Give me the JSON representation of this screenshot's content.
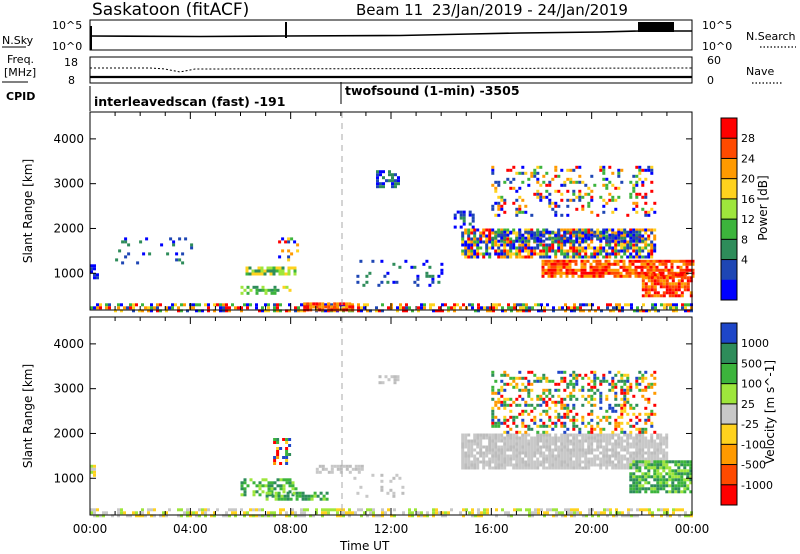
{
  "header": {
    "title": "Saskatoon (fitACF)",
    "beam": "Beam 11",
    "date_range": "23/Jan/2019 - 24/Jan/2019"
  },
  "ancillary": {
    "nsky_label": "N.Sky",
    "nsky_ticks": [
      "10^5",
      "10^0"
    ],
    "nsearch_label": "N.Search",
    "nsearch_ticks": [
      "10^5",
      "10^0"
    ],
    "freq_label_1": "Freq.",
    "freq_label_2": "[MHz]",
    "freq_ticks": [
      "18",
      "8"
    ],
    "nave_label": "Nave",
    "nave_ticks": [
      "60",
      "0"
    ],
    "cpid_label": "CPID",
    "cpid_segments": [
      {
        "name": "interleavedscan (fast) -191",
        "start_hour": 0
      },
      {
        "name": "twofsound (1-min) -3505",
        "start_hour": 10
      }
    ]
  },
  "chart_data": [
    {
      "type": "heatmap",
      "title": "Power [dB]",
      "ylabel": "Slant Range [km]",
      "xlabel": "Time UT",
      "ylim": [
        180,
        4600
      ],
      "yticks": [
        1000,
        2000,
        3000,
        4000
      ],
      "xlim": [
        0,
        24
      ],
      "xticks": [
        "00:00",
        "04:00",
        "08:00",
        "12:00",
        "16:00",
        "20:00",
        "00:00"
      ],
      "colorbar_ticks": [
        "28",
        "24",
        "20",
        "16",
        "12",
        "8",
        "4"
      ],
      "colorbar_colors": [
        "#ff0000",
        "#ff4a00",
        "#ff9a00",
        "#ffd21e",
        "#9ee63c",
        "#3cb43c",
        "#2e8c5a",
        "#1e46b4",
        "#0000ff"
      ]
    },
    {
      "type": "heatmap",
      "title": "Velocity [m s^-1]",
      "ylabel": "Slant Range [km]",
      "xlabel": "Time UT",
      "ylim": [
        180,
        4600
      ],
      "yticks": [
        1000,
        2000,
        3000,
        4000
      ],
      "xlim": [
        0,
        24
      ],
      "xticks": [
        "00:00",
        "04:00",
        "08:00",
        "12:00",
        "16:00",
        "20:00",
        "00:00"
      ],
      "colorbar_ticks": [
        "1000",
        "500",
        "100",
        "25",
        "-25",
        "-100",
        "-500",
        "-1000"
      ],
      "colorbar_colors": [
        "#1e46c8",
        "#2e8c5a",
        "#3cb43c",
        "#9ee63c",
        "#c8c8c8",
        "#ffd21e",
        "#ff9a00",
        "#ff4a00",
        "#ff0000"
      ]
    }
  ],
  "xaxis_title": "Time UT"
}
